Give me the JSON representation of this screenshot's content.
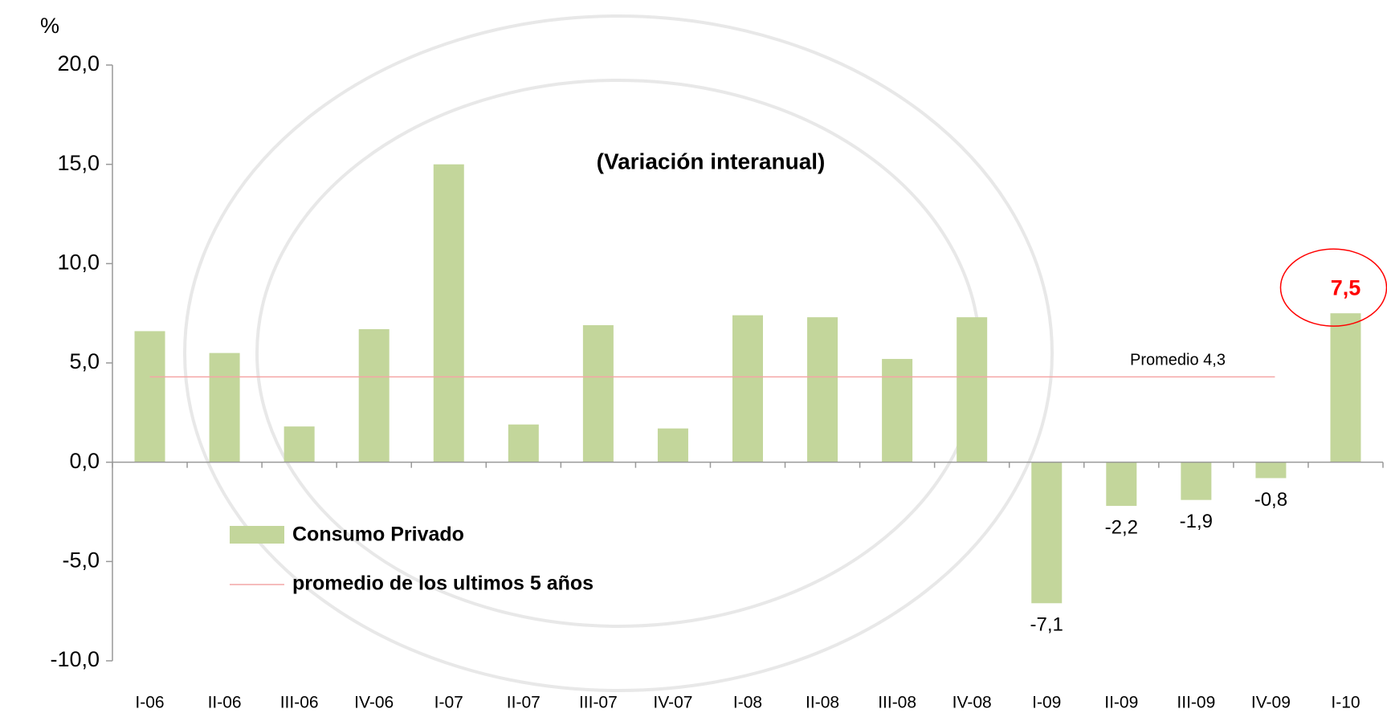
{
  "chart_data": {
    "type": "bar",
    "subtitle": "(Variación interanual)",
    "y_label": "%",
    "categories": [
      "I-06",
      "II-06",
      "III-06",
      "IV-06",
      "I-07",
      "II-07",
      "III-07",
      "IV-07",
      "I-08",
      "II-08",
      "III-08",
      "IV-08",
      "I-09",
      "II-09",
      "III-09",
      "IV-09",
      "I-10"
    ],
    "series": [
      {
        "name": "Consumo Privado",
        "color": "#c3d69b",
        "values": [
          6.6,
          5.5,
          1.8,
          6.7,
          15.0,
          1.9,
          6.9,
          1.7,
          7.4,
          7.3,
          5.2,
          7.3,
          -7.1,
          -2.2,
          -1.9,
          -0.8,
          7.5
        ],
        "value_labels": [
          null,
          null,
          null,
          null,
          null,
          null,
          null,
          null,
          null,
          null,
          null,
          null,
          "-7,1",
          "-2,2",
          "-1,9",
          "-0,8",
          "7,5"
        ]
      }
    ],
    "reference_line": {
      "name": "promedio de los ultimos 5 años",
      "color": "#f4a6a6",
      "value": 4.3,
      "label": "Promedio 4,3"
    },
    "highlight_color": "#ff0000",
    "ylim": [
      -10,
      20
    ],
    "yticks": [
      {
        "value": -10,
        "label": "-10,0"
      },
      {
        "value": -5,
        "label": "-5,0"
      },
      {
        "value": 0,
        "label": "0,0"
      },
      {
        "value": 5,
        "label": "5,0"
      },
      {
        "value": 10,
        "label": "10,0"
      },
      {
        "value": 15,
        "label": "15,0"
      },
      {
        "value": 20,
        "label": "20,0"
      }
    ],
    "grid": false
  }
}
